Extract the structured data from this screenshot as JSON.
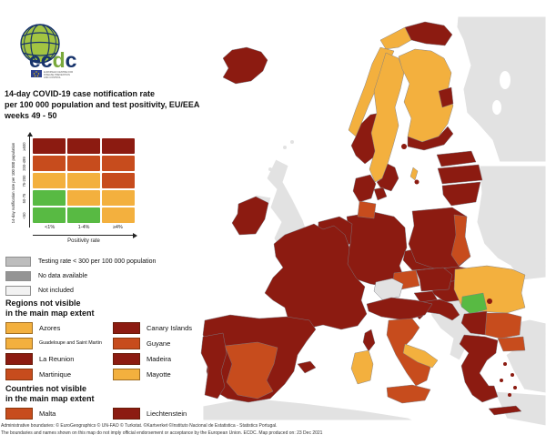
{
  "logo": {
    "wordmark": "ecdc",
    "tagline_lines": [
      "EUROPEAN CENTRE FOR",
      "DISEASE PREVENTION",
      "AND CONTROL"
    ]
  },
  "title": {
    "line1": "14-day COVID-19 case notification rate",
    "line2": "per 100 000 population and test positivity, EU/EEA",
    "line3": "weeks 49 - 50"
  },
  "palette": {
    "dark_red": "#8C1B11",
    "red": "#C74C1D",
    "orange": "#F3B03E",
    "green": "#58BA43",
    "non_eu": "#E2E2E2",
    "testing_low": "#BDBDBD",
    "no_data": "#949494",
    "not_included": "#F2F2F2"
  },
  "matrix": {
    "y_axis_label": "14-day notification rate per 100 000 population",
    "x_axis_label": "Positivity rate",
    "row_labels_top_to_bottom": [
      "≥500",
      "200-499",
      "75-200",
      "50-75",
      "<50"
    ],
    "col_labels": [
      "<1%",
      "1-4%",
      "≥4%"
    ],
    "cells": [
      [
        "dark_red",
        "dark_red",
        "dark_red"
      ],
      [
        "red",
        "red",
        "red"
      ],
      [
        "orange",
        "orange",
        "red"
      ],
      [
        "green",
        "orange",
        "orange"
      ],
      [
        "green",
        "green",
        "orange"
      ]
    ]
  },
  "status_legend": [
    {
      "label": "Testing rate < 300 per 100 000 population",
      "category": "testing_low"
    },
    {
      "label": "No data available",
      "category": "no_data"
    },
    {
      "label": "Not included",
      "category": "not_included"
    }
  ],
  "regions_not_visible": {
    "heading_line1": "Regions not visible",
    "heading_line2": "in the main map extent",
    "items": [
      {
        "label": "Azores",
        "category": "orange"
      },
      {
        "label": "Canary Islands",
        "category": "dark_red"
      },
      {
        "label": "Guadeloupe and Saint Martin",
        "category": "orange",
        "small": true
      },
      {
        "label": "Guyane",
        "category": "red"
      },
      {
        "label": "La Reunion",
        "category": "dark_red"
      },
      {
        "label": "Madeira",
        "category": "dark_red"
      },
      {
        "label": "Martinique",
        "category": "red"
      },
      {
        "label": "Mayotte",
        "category": "orange"
      }
    ]
  },
  "countries_not_visible": {
    "heading_line1": "Countries not visible",
    "heading_line2": "in the main map extent",
    "items": [
      {
        "label": "Malta",
        "category": "red"
      },
      {
        "label": "Liechtenstein",
        "category": "dark_red"
      }
    ]
  },
  "map": {
    "regions": [
      {
        "id": "russia",
        "name": "Russia",
        "category": "non_eu"
      },
      {
        "id": "belarus_ukraine",
        "name": "Belarus / Ukraine / Moldova",
        "category": "non_eu"
      },
      {
        "id": "uk",
        "name": "United Kingdom",
        "category": "non_eu"
      },
      {
        "id": "northern_ireland",
        "name": "Northern Ireland",
        "category": "non_eu"
      },
      {
        "id": "uk_islands",
        "name": "Scottish islands",
        "category": "non_eu"
      },
      {
        "id": "balkans",
        "name": "Western Balkans",
        "category": "non_eu"
      },
      {
        "id": "turkey",
        "name": "Turkey",
        "category": "non_eu"
      },
      {
        "id": "africa",
        "name": "North Africa",
        "category": "non_eu"
      },
      {
        "id": "africa_corner",
        "name": "South-east corner land",
        "category": "non_eu"
      },
      {
        "id": "kaliningrad",
        "name": "Kaliningrad",
        "category": "non_eu"
      },
      {
        "id": "switzerland",
        "name": "Switzerland",
        "category": "non_eu"
      },
      {
        "id": "iceland",
        "name": "Iceland",
        "category": "dark_red"
      },
      {
        "id": "norway_finnmark",
        "name": "Norway (north-east)",
        "category": "dark_red"
      },
      {
        "id": "norway_troms",
        "name": "Norway (north-west)",
        "category": "orange"
      },
      {
        "id": "norway_coast",
        "name": "Norway (coast)",
        "category": "orange"
      },
      {
        "id": "norway_south",
        "name": "Norway (south)",
        "category": "dark_red"
      },
      {
        "id": "sweden",
        "name": "Sweden",
        "category": "orange"
      },
      {
        "id": "sweden_south",
        "name": "Sweden (south)",
        "category": "dark_red"
      },
      {
        "id": "sweden_stockholm",
        "name": "Sweden (Stockholm)",
        "category": "dark_red"
      },
      {
        "id": "gotland",
        "name": "Gotland",
        "category": "orange"
      },
      {
        "id": "finland",
        "name": "Finland",
        "category": "orange"
      },
      {
        "id": "finland_south",
        "name": "Finland (south)",
        "category": "dark_red"
      },
      {
        "id": "finland_ne",
        "name": "Finland (north-east)",
        "category": "dark_red"
      },
      {
        "id": "estonia",
        "name": "Estonia",
        "category": "dark_red"
      },
      {
        "id": "latvia",
        "name": "Latvia",
        "category": "dark_red"
      },
      {
        "id": "lithuania",
        "name": "Lithuania",
        "category": "dark_red"
      },
      {
        "id": "ireland",
        "name": "Ireland",
        "category": "dark_red"
      },
      {
        "id": "denmark",
        "name": "Denmark",
        "category": "dark_red"
      },
      {
        "id": "denmark_islands",
        "name": "Denmark (islands)",
        "category": "dark_red"
      },
      {
        "id": "bornholm",
        "name": "Bornholm",
        "category": "dark_red"
      },
      {
        "id": "germany",
        "name": "Germany",
        "category": "dark_red"
      },
      {
        "id": "germany_north",
        "name": "Germany (north)",
        "category": "red"
      },
      {
        "id": "benelux",
        "name": "Benelux",
        "category": "dark_red"
      },
      {
        "id": "france",
        "name": "France",
        "category": "dark_red"
      },
      {
        "id": "corsica",
        "name": "Corsica",
        "category": "dark_red"
      },
      {
        "id": "austria",
        "name": "Austria",
        "category": "dark_red"
      },
      {
        "id": "austria_west",
        "name": "Austria (west)",
        "category": "red"
      },
      {
        "id": "czechia",
        "name": "Czechia",
        "category": "dark_red"
      },
      {
        "id": "poland",
        "name": "Poland",
        "category": "dark_red"
      },
      {
        "id": "poland_east",
        "name": "Poland (east)",
        "category": "red"
      },
      {
        "id": "slovakia",
        "name": "Slovakia",
        "category": "dark_red"
      },
      {
        "id": "hungary",
        "name": "Hungary",
        "category": "dark_red"
      },
      {
        "id": "slovenia",
        "name": "Slovenia",
        "category": "dark_red"
      },
      {
        "id": "croatia",
        "name": "Croatia",
        "category": "dark_red"
      },
      {
        "id": "italy_north",
        "name": "Italy (north)",
        "category": "dark_red"
      },
      {
        "id": "italy_centre_south",
        "name": "Italy (centre-south)",
        "category": "red"
      },
      {
        "id": "apulia",
        "name": "Apulia",
        "category": "orange"
      },
      {
        "id": "sicily",
        "name": "Sicily",
        "category": "red"
      },
      {
        "id": "sardinia",
        "name": "Sardinia",
        "category": "orange"
      },
      {
        "id": "spain",
        "name": "Spain",
        "category": "dark_red"
      },
      {
        "id": "spain_centre",
        "name": "Spain (centre-south)",
        "category": "red"
      },
      {
        "id": "portugal",
        "name": "Portugal",
        "category": "dark_red"
      },
      {
        "id": "balearics",
        "name": "Balearic Islands",
        "category": "dark_red"
      },
      {
        "id": "romania",
        "name": "Romania",
        "category": "orange"
      },
      {
        "id": "romania_centre",
        "name": "Romania (centre)",
        "category": "green"
      },
      {
        "id": "bucharest",
        "name": "Bucharest",
        "category": "dark_red"
      },
      {
        "id": "bulgaria",
        "name": "Bulgaria",
        "category": "red"
      },
      {
        "id": "bulgaria_west",
        "name": "Bulgaria (west)",
        "category": "dark_red"
      },
      {
        "id": "greece",
        "name": "Greece",
        "category": "dark_red"
      },
      {
        "id": "greece_ne",
        "name": "Greece (north-east)",
        "category": "red"
      },
      {
        "id": "crete",
        "name": "Crete",
        "category": "dark_red"
      },
      {
        "id": "aegean_islands",
        "name": "Aegean islands",
        "category": "dark_red"
      }
    ]
  },
  "footer": {
    "line1": "Administrative boundaries: © EuroGeographics © UN-FAO © Turkstat. ©Kartverket ©Instituto Nacional de Estatistica - Statistics Portugal.",
    "line2": "The boundaries and names shown on this map do not imply official endorsement or acceptance by the European Union. ECDC. Map produced on: 23 Dec 2021"
  }
}
